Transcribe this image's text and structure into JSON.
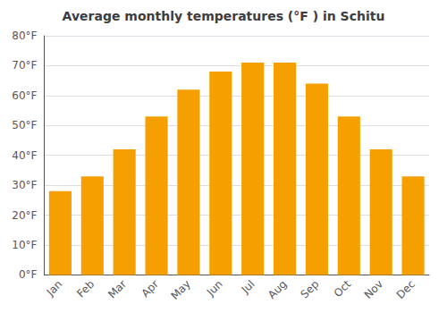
{
  "chart_data": {
    "type": "bar",
    "title": "Average monthly temperatures (°F ) in Schitu",
    "categories": [
      "Jan",
      "Feb",
      "Mar",
      "Apr",
      "May",
      "Jun",
      "Jul",
      "Aug",
      "Sep",
      "Oct",
      "Nov",
      "Dec"
    ],
    "values": [
      28,
      33,
      42,
      53,
      62,
      68,
      71,
      71,
      64,
      53,
      42,
      33
    ],
    "color": "#F5A000",
    "ylim": [
      0,
      80
    ],
    "yticks": [
      {
        "value": 0,
        "label": "0°F"
      },
      {
        "value": 10,
        "label": "10°F"
      },
      {
        "value": 20,
        "label": "20°F"
      },
      {
        "value": 30,
        "label": "30°F"
      },
      {
        "value": 40,
        "label": "40°F"
      },
      {
        "value": 50,
        "label": "50°F"
      },
      {
        "value": 60,
        "label": "60°F"
      },
      {
        "value": 70,
        "label": "70°F"
      },
      {
        "value": 80,
        "label": "80°F"
      }
    ],
    "grid": true
  }
}
